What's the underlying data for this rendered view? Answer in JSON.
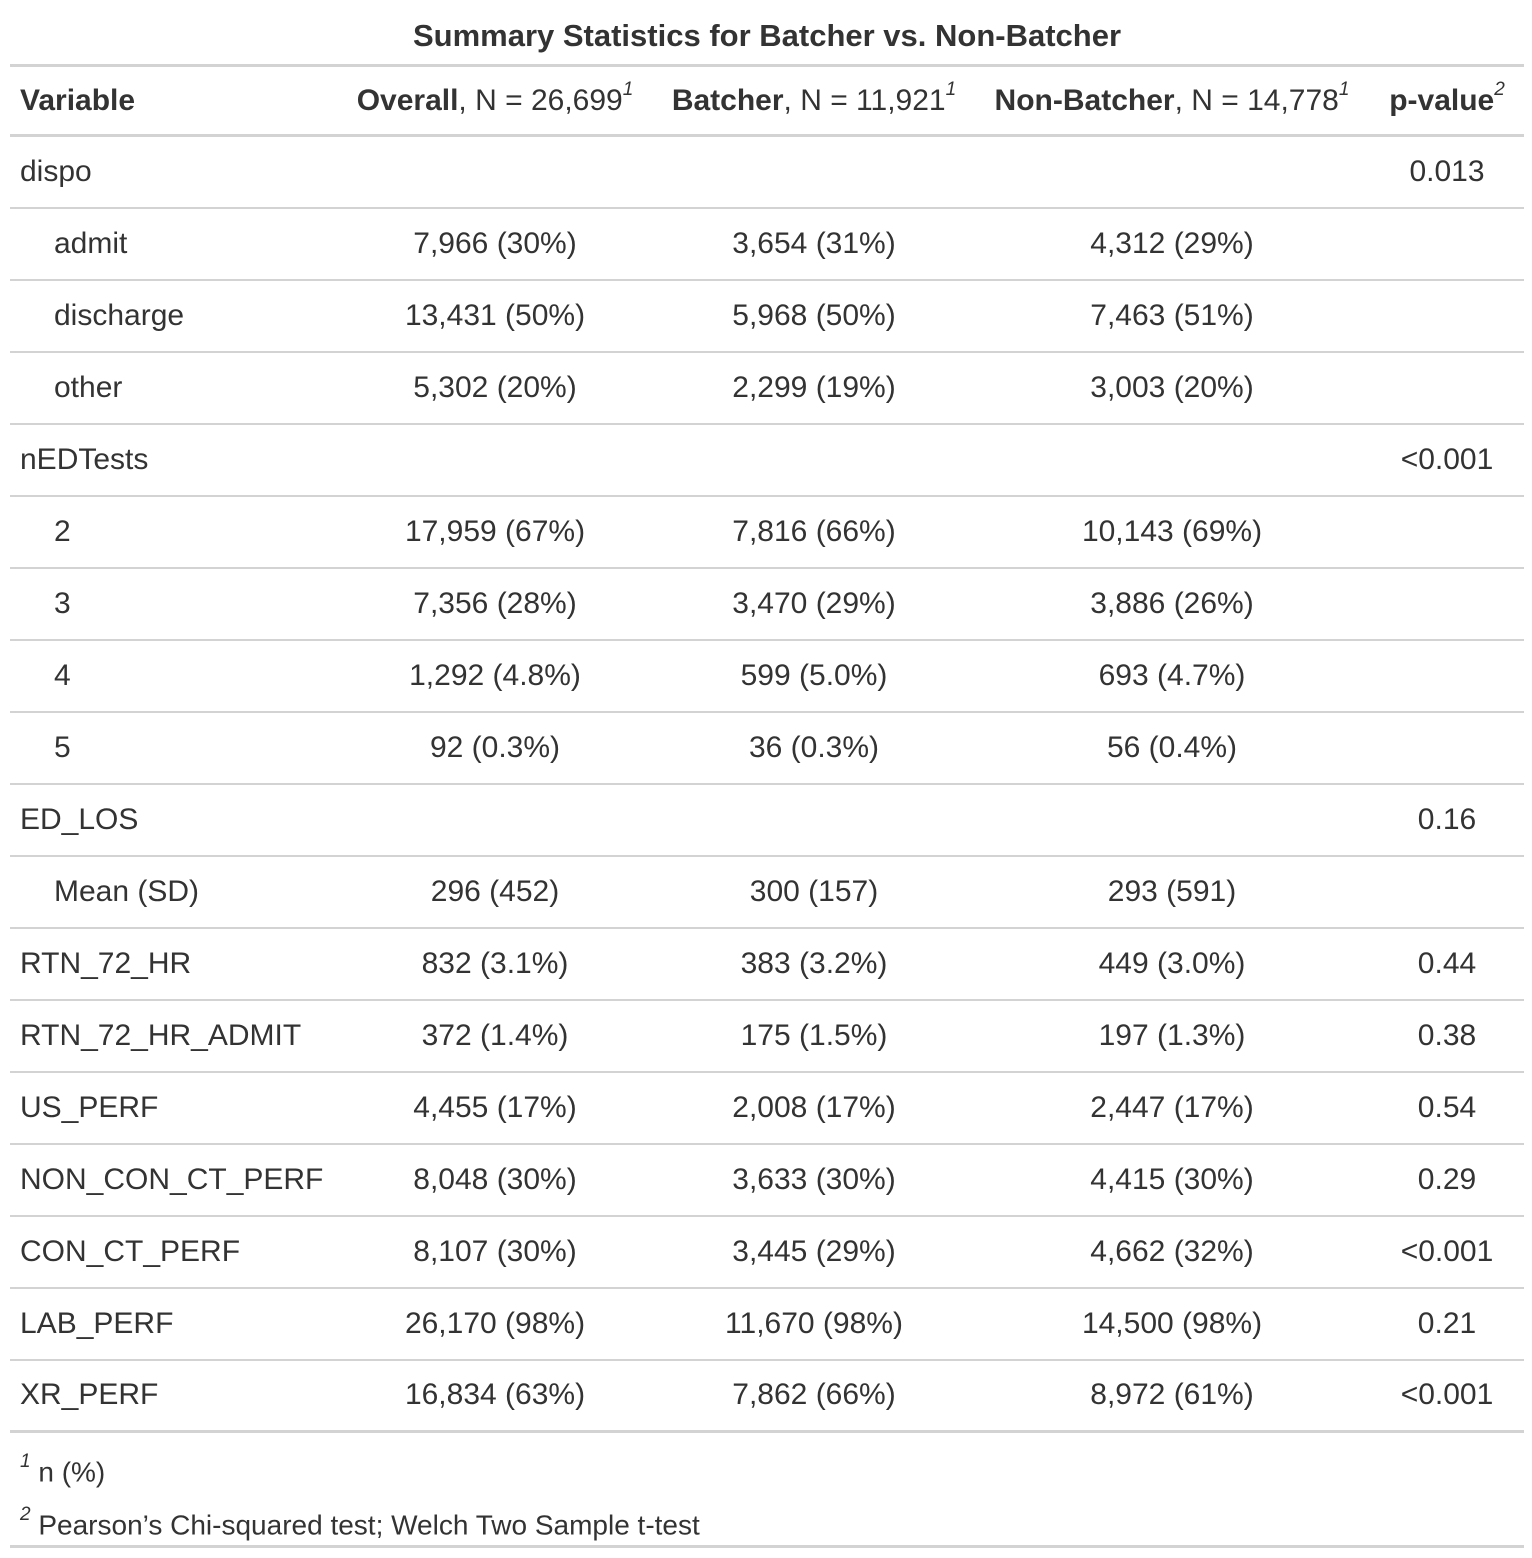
{
  "title": "Summary Statistics for Batcher vs. Non-Batcher",
  "header": {
    "variable": "Variable",
    "overall_bold": "Overall",
    "overall_n": ", N = 26,699",
    "overall_sup": "1",
    "batcher_bold": "Batcher",
    "batcher_n": ", N = 11,921",
    "batcher_sup": "1",
    "nonbatcher_bold": "Non-Batcher",
    "nonbatcher_n": ", N = 14,778",
    "nonbatcher_sup": "1",
    "pvalue_bold": "p-value",
    "pvalue_sup": "2"
  },
  "rows": [
    {
      "label": "dispo",
      "indent": false,
      "overall": "",
      "batcher": "",
      "nonbatcher": "",
      "p": "0.013"
    },
    {
      "label": "admit",
      "indent": true,
      "overall": "7,966 (30%)",
      "batcher": "3,654 (31%)",
      "nonbatcher": "4,312 (29%)",
      "p": ""
    },
    {
      "label": "discharge",
      "indent": true,
      "overall": "13,431 (50%)",
      "batcher": "5,968 (50%)",
      "nonbatcher": "7,463 (51%)",
      "p": ""
    },
    {
      "label": "other",
      "indent": true,
      "overall": "5,302 (20%)",
      "batcher": "2,299 (19%)",
      "nonbatcher": "3,003 (20%)",
      "p": ""
    },
    {
      "label": "nEDTests",
      "indent": false,
      "overall": "",
      "batcher": "",
      "nonbatcher": "",
      "p": "<0.001"
    },
    {
      "label": "2",
      "indent": true,
      "overall": "17,959 (67%)",
      "batcher": "7,816 (66%)",
      "nonbatcher": "10,143 (69%)",
      "p": ""
    },
    {
      "label": "3",
      "indent": true,
      "overall": "7,356 (28%)",
      "batcher": "3,470 (29%)",
      "nonbatcher": "3,886 (26%)",
      "p": ""
    },
    {
      "label": "4",
      "indent": true,
      "overall": "1,292 (4.8%)",
      "batcher": "599 (5.0%)",
      "nonbatcher": "693 (4.7%)",
      "p": ""
    },
    {
      "label": "5",
      "indent": true,
      "overall": "92 (0.3%)",
      "batcher": "36 (0.3%)",
      "nonbatcher": "56 (0.4%)",
      "p": ""
    },
    {
      "label": "ED_LOS",
      "indent": false,
      "overall": "",
      "batcher": "",
      "nonbatcher": "",
      "p": "0.16"
    },
    {
      "label": "Mean (SD)",
      "indent": true,
      "overall": "296 (452)",
      "batcher": "300 (157)",
      "nonbatcher": "293 (591)",
      "p": ""
    },
    {
      "label": "RTN_72_HR",
      "indent": false,
      "overall": "832 (3.1%)",
      "batcher": "383 (3.2%)",
      "nonbatcher": "449 (3.0%)",
      "p": "0.44"
    },
    {
      "label": "RTN_72_HR_ADMIT",
      "indent": false,
      "overall": "372 (1.4%)",
      "batcher": "175 (1.5%)",
      "nonbatcher": "197 (1.3%)",
      "p": "0.38"
    },
    {
      "label": "US_PERF",
      "indent": false,
      "overall": "4,455 (17%)",
      "batcher": "2,008 (17%)",
      "nonbatcher": "2,447 (17%)",
      "p": "0.54"
    },
    {
      "label": "NON_CON_CT_PERF",
      "indent": false,
      "overall": "8,048 (30%)",
      "batcher": "3,633 (30%)",
      "nonbatcher": "4,415 (30%)",
      "p": "0.29"
    },
    {
      "label": "CON_CT_PERF",
      "indent": false,
      "overall": "8,107 (30%)",
      "batcher": "3,445 (29%)",
      "nonbatcher": "4,662 (32%)",
      "p": "<0.001"
    },
    {
      "label": "LAB_PERF",
      "indent": false,
      "overall": "26,170 (98%)",
      "batcher": "11,670 (98%)",
      "nonbatcher": "14,500 (98%)",
      "p": "0.21"
    },
    {
      "label": "XR_PERF",
      "indent": false,
      "overall": "16,834 (63%)",
      "batcher": "7,862 (66%)",
      "nonbatcher": "8,972 (61%)",
      "p": "<0.001"
    }
  ],
  "footnotes": [
    {
      "mark": "1",
      "text": "n (%)"
    },
    {
      "mark": "2",
      "text": "Pearson’s Chi-squared test; Welch Two Sample t-test"
    }
  ]
}
